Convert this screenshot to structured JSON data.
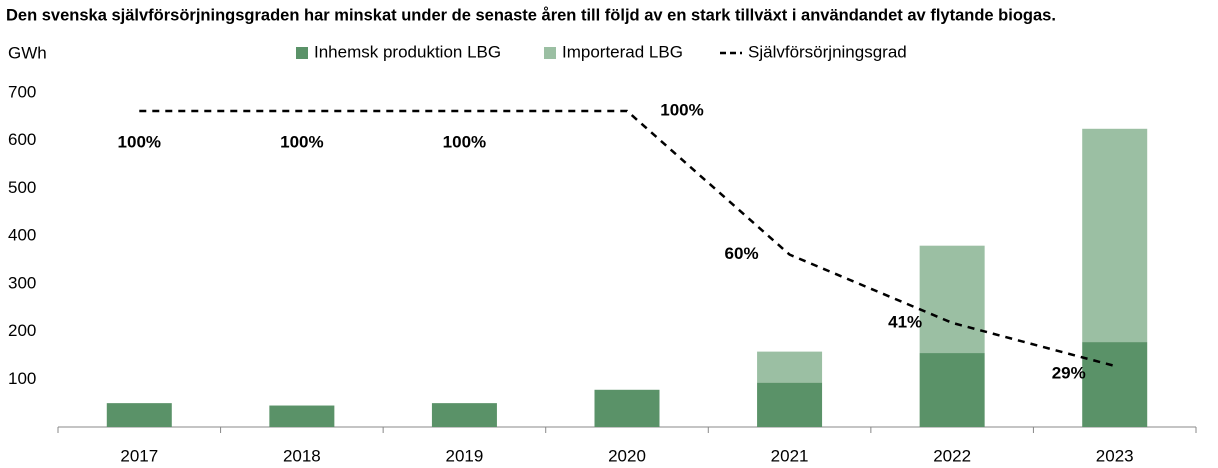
{
  "chart_data": {
    "type": "bar",
    "stacked": true,
    "title": "Den svenska självförsörjningsgraden har minskat under de senaste åren till följd av en stark tillväxt i användandet av flytande biogas.",
    "y_label": "GWh",
    "categories": [
      "2017",
      "2018",
      "2019",
      "2020",
      "2021",
      "2022",
      "2023"
    ],
    "series": [
      {
        "name": "Inhemsk produktion LBG",
        "color": "#5a9268",
        "values": [
          50,
          45,
          50,
          78,
          93,
          155,
          178
        ]
      },
      {
        "name": "Importerad LBG",
        "color": "#9bbfa3",
        "values": [
          0,
          0,
          0,
          0,
          65,
          225,
          447
        ]
      },
      {
        "name": "Självförsörjningsgrad",
        "type": "line",
        "axis": "y2",
        "color": "#000000",
        "dashed": true,
        "values": [
          100,
          100,
          100,
          100,
          60,
          41,
          29
        ],
        "value_labels": [
          "100%",
          "100%",
          "100%",
          "100%",
          "60%",
          "41%",
          "29%"
        ]
      }
    ],
    "ylim": [
      0,
      700
    ],
    "yticks": [
      100,
      200,
      300,
      400,
      500,
      600,
      700
    ],
    "y2lim": [
      12,
      105
    ],
    "grid": false
  }
}
